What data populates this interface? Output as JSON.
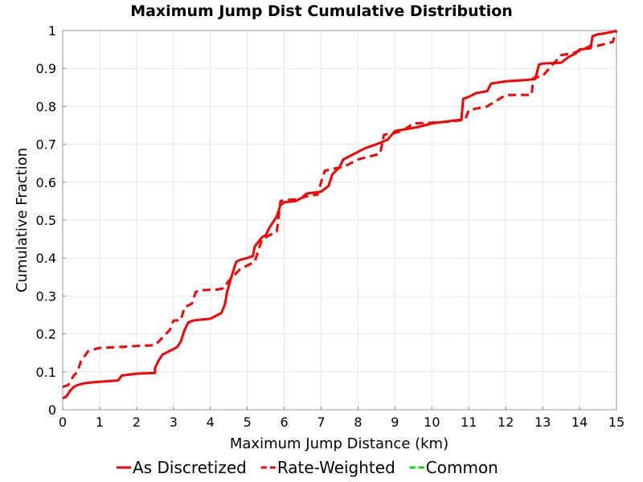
{
  "chart_data": {
    "type": "line",
    "title": "Maximum Jump Dist Cumulative Distribution",
    "xlabel": "Maximum Jump Distance (km)",
    "ylabel": "Cumulative Fraction",
    "xlim": [
      0,
      15
    ],
    "ylim": [
      0,
      1
    ],
    "x_ticks": [
      "0",
      "1",
      "2",
      "3",
      "4",
      "5",
      "6",
      "7",
      "8",
      "9",
      "10",
      "11",
      "12",
      "13",
      "14",
      "15"
    ],
    "y_ticks": [
      "0",
      "0.1",
      "0.2",
      "0.3",
      "0.4",
      "0.5",
      "0.6",
      "0.7",
      "0.8",
      "0.9",
      "1"
    ],
    "grid": true,
    "legend_position": "bottom",
    "series": [
      {
        "name": "As Discretized",
        "color": "#ff0000",
        "style": "solid",
        "x": [
          0.0,
          0.1,
          0.2,
          0.3,
          0.4,
          0.6,
          0.9,
          1.5,
          1.6,
          2.0,
          2.5,
          2.5,
          2.6,
          2.7,
          3.0,
          3.1,
          3.2,
          3.3,
          3.4,
          3.5,
          3.6,
          4.0,
          4.2,
          4.3,
          4.4,
          4.45,
          4.6,
          4.7,
          4.8,
          5.0,
          5.15,
          5.2,
          5.4,
          5.5,
          5.6,
          5.8,
          5.9,
          6.0,
          6.3,
          6.5,
          6.6,
          7.0,
          7.2,
          7.3,
          7.5,
          7.6,
          7.8,
          8.0,
          8.2,
          8.5,
          8.8,
          9.0,
          9.6,
          10.0,
          10.8,
          10.85,
          11.0,
          11.2,
          11.5,
          11.6,
          12.0,
          12.6,
          12.8,
          12.9,
          13.0,
          13.5,
          13.7,
          13.9,
          14.0,
          14.3,
          14.35,
          14.5,
          14.7,
          14.9,
          15.0
        ],
        "y": [
          0.03,
          0.035,
          0.05,
          0.06,
          0.065,
          0.07,
          0.073,
          0.077,
          0.09,
          0.095,
          0.097,
          0.11,
          0.13,
          0.145,
          0.16,
          0.165,
          0.18,
          0.21,
          0.23,
          0.234,
          0.236,
          0.24,
          0.25,
          0.255,
          0.28,
          0.31,
          0.36,
          0.39,
          0.395,
          0.4,
          0.405,
          0.43,
          0.455,
          0.46,
          0.48,
          0.51,
          0.54,
          0.547,
          0.55,
          0.56,
          0.57,
          0.575,
          0.59,
          0.62,
          0.64,
          0.66,
          0.67,
          0.68,
          0.69,
          0.7,
          0.712,
          0.735,
          0.745,
          0.755,
          0.765,
          0.82,
          0.825,
          0.835,
          0.84,
          0.86,
          0.866,
          0.87,
          0.872,
          0.91,
          0.913,
          0.915,
          0.93,
          0.94,
          0.95,
          0.953,
          0.985,
          0.99,
          0.993,
          0.997,
          1.0
        ]
      },
      {
        "name": "Rate-Weighted",
        "color": "#ff0000",
        "style": "dashed",
        "x": [
          0.0,
          0.15,
          0.3,
          0.4,
          0.5,
          0.7,
          1.0,
          1.5,
          2.0,
          2.5,
          2.6,
          2.8,
          2.9,
          3.0,
          3.2,
          3.3,
          3.5,
          3.6,
          3.7,
          4.2,
          4.35,
          4.5,
          4.7,
          4.8,
          5.0,
          5.2,
          5.4,
          5.6,
          5.8,
          5.9,
          6.0,
          6.4,
          6.5,
          6.7,
          6.9,
          7.0,
          7.1,
          7.3,
          7.6,
          7.8,
          8.0,
          8.4,
          8.6,
          8.7,
          9.0,
          9.2,
          9.5,
          10.0,
          10.5,
          10.9,
          11.0,
          11.5,
          12.0,
          12.7,
          12.75,
          13.0,
          13.5,
          13.8,
          14.1,
          14.3,
          14.5,
          14.9,
          15.0
        ],
        "y": [
          0.06,
          0.065,
          0.09,
          0.1,
          0.13,
          0.155,
          0.163,
          0.165,
          0.168,
          0.17,
          0.18,
          0.2,
          0.21,
          0.235,
          0.236,
          0.27,
          0.28,
          0.31,
          0.315,
          0.317,
          0.32,
          0.34,
          0.36,
          0.37,
          0.38,
          0.39,
          0.45,
          0.46,
          0.47,
          0.55,
          0.553,
          0.555,
          0.56,
          0.565,
          0.567,
          0.6,
          0.63,
          0.635,
          0.64,
          0.65,
          0.66,
          0.67,
          0.675,
          0.725,
          0.73,
          0.735,
          0.755,
          0.757,
          0.76,
          0.765,
          0.79,
          0.8,
          0.83,
          0.83,
          0.875,
          0.88,
          0.935,
          0.94,
          0.95,
          0.96,
          0.96,
          0.97,
          1.0
        ]
      },
      {
        "name": "Common",
        "color": "#00dd00",
        "style": "dashed",
        "x": [],
        "y": []
      }
    ]
  }
}
